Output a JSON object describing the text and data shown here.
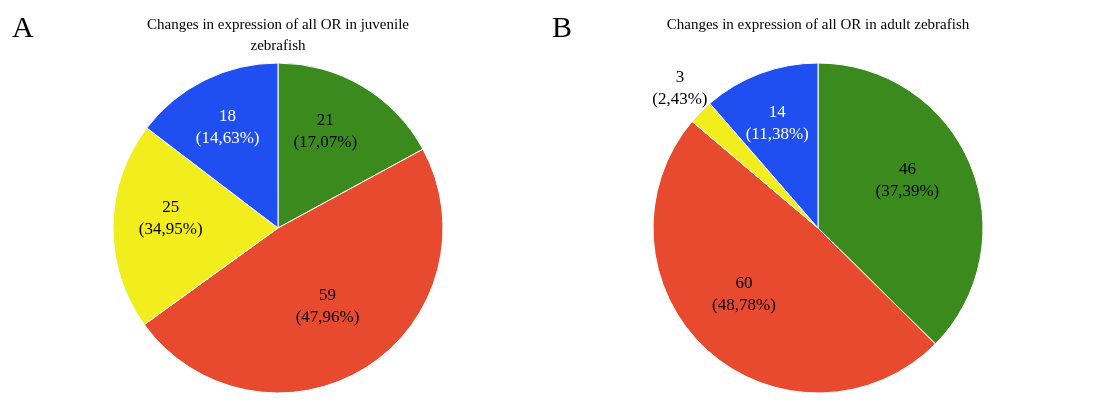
{
  "chart_data": [
    {
      "type": "pie",
      "title": "Changes in expression of all OR in juvenile zebrafish",
      "annotations": [
        "A"
      ],
      "categories": [
        null,
        null,
        null,
        null
      ],
      "values": [
        21,
        59,
        25,
        18
      ],
      "colors": [
        "#3a8a1e",
        "#e84a2f",
        "#f2ee1e",
        "#1f4ff0"
      ],
      "value_labels": [
        "21 (17,07%)",
        "59 (47,96%)",
        "25 (34,95%)",
        "18 (14,63%)"
      ]
    },
    {
      "type": "pie",
      "title": "Changes in expression of all OR in adult zebrafish",
      "annotations": [
        "B"
      ],
      "categories": [
        null,
        null,
        null,
        null
      ],
      "values": [
        46,
        60,
        3,
        14
      ],
      "colors": [
        "#3a8a1e",
        "#e84a2f",
        "#f2ee1e",
        "#1f4ff0"
      ],
      "value_labels": [
        "46 (37,39%)",
        "60 (48,78%)",
        "3 (2,43%)",
        "14 (11,38%)"
      ]
    }
  ]
}
